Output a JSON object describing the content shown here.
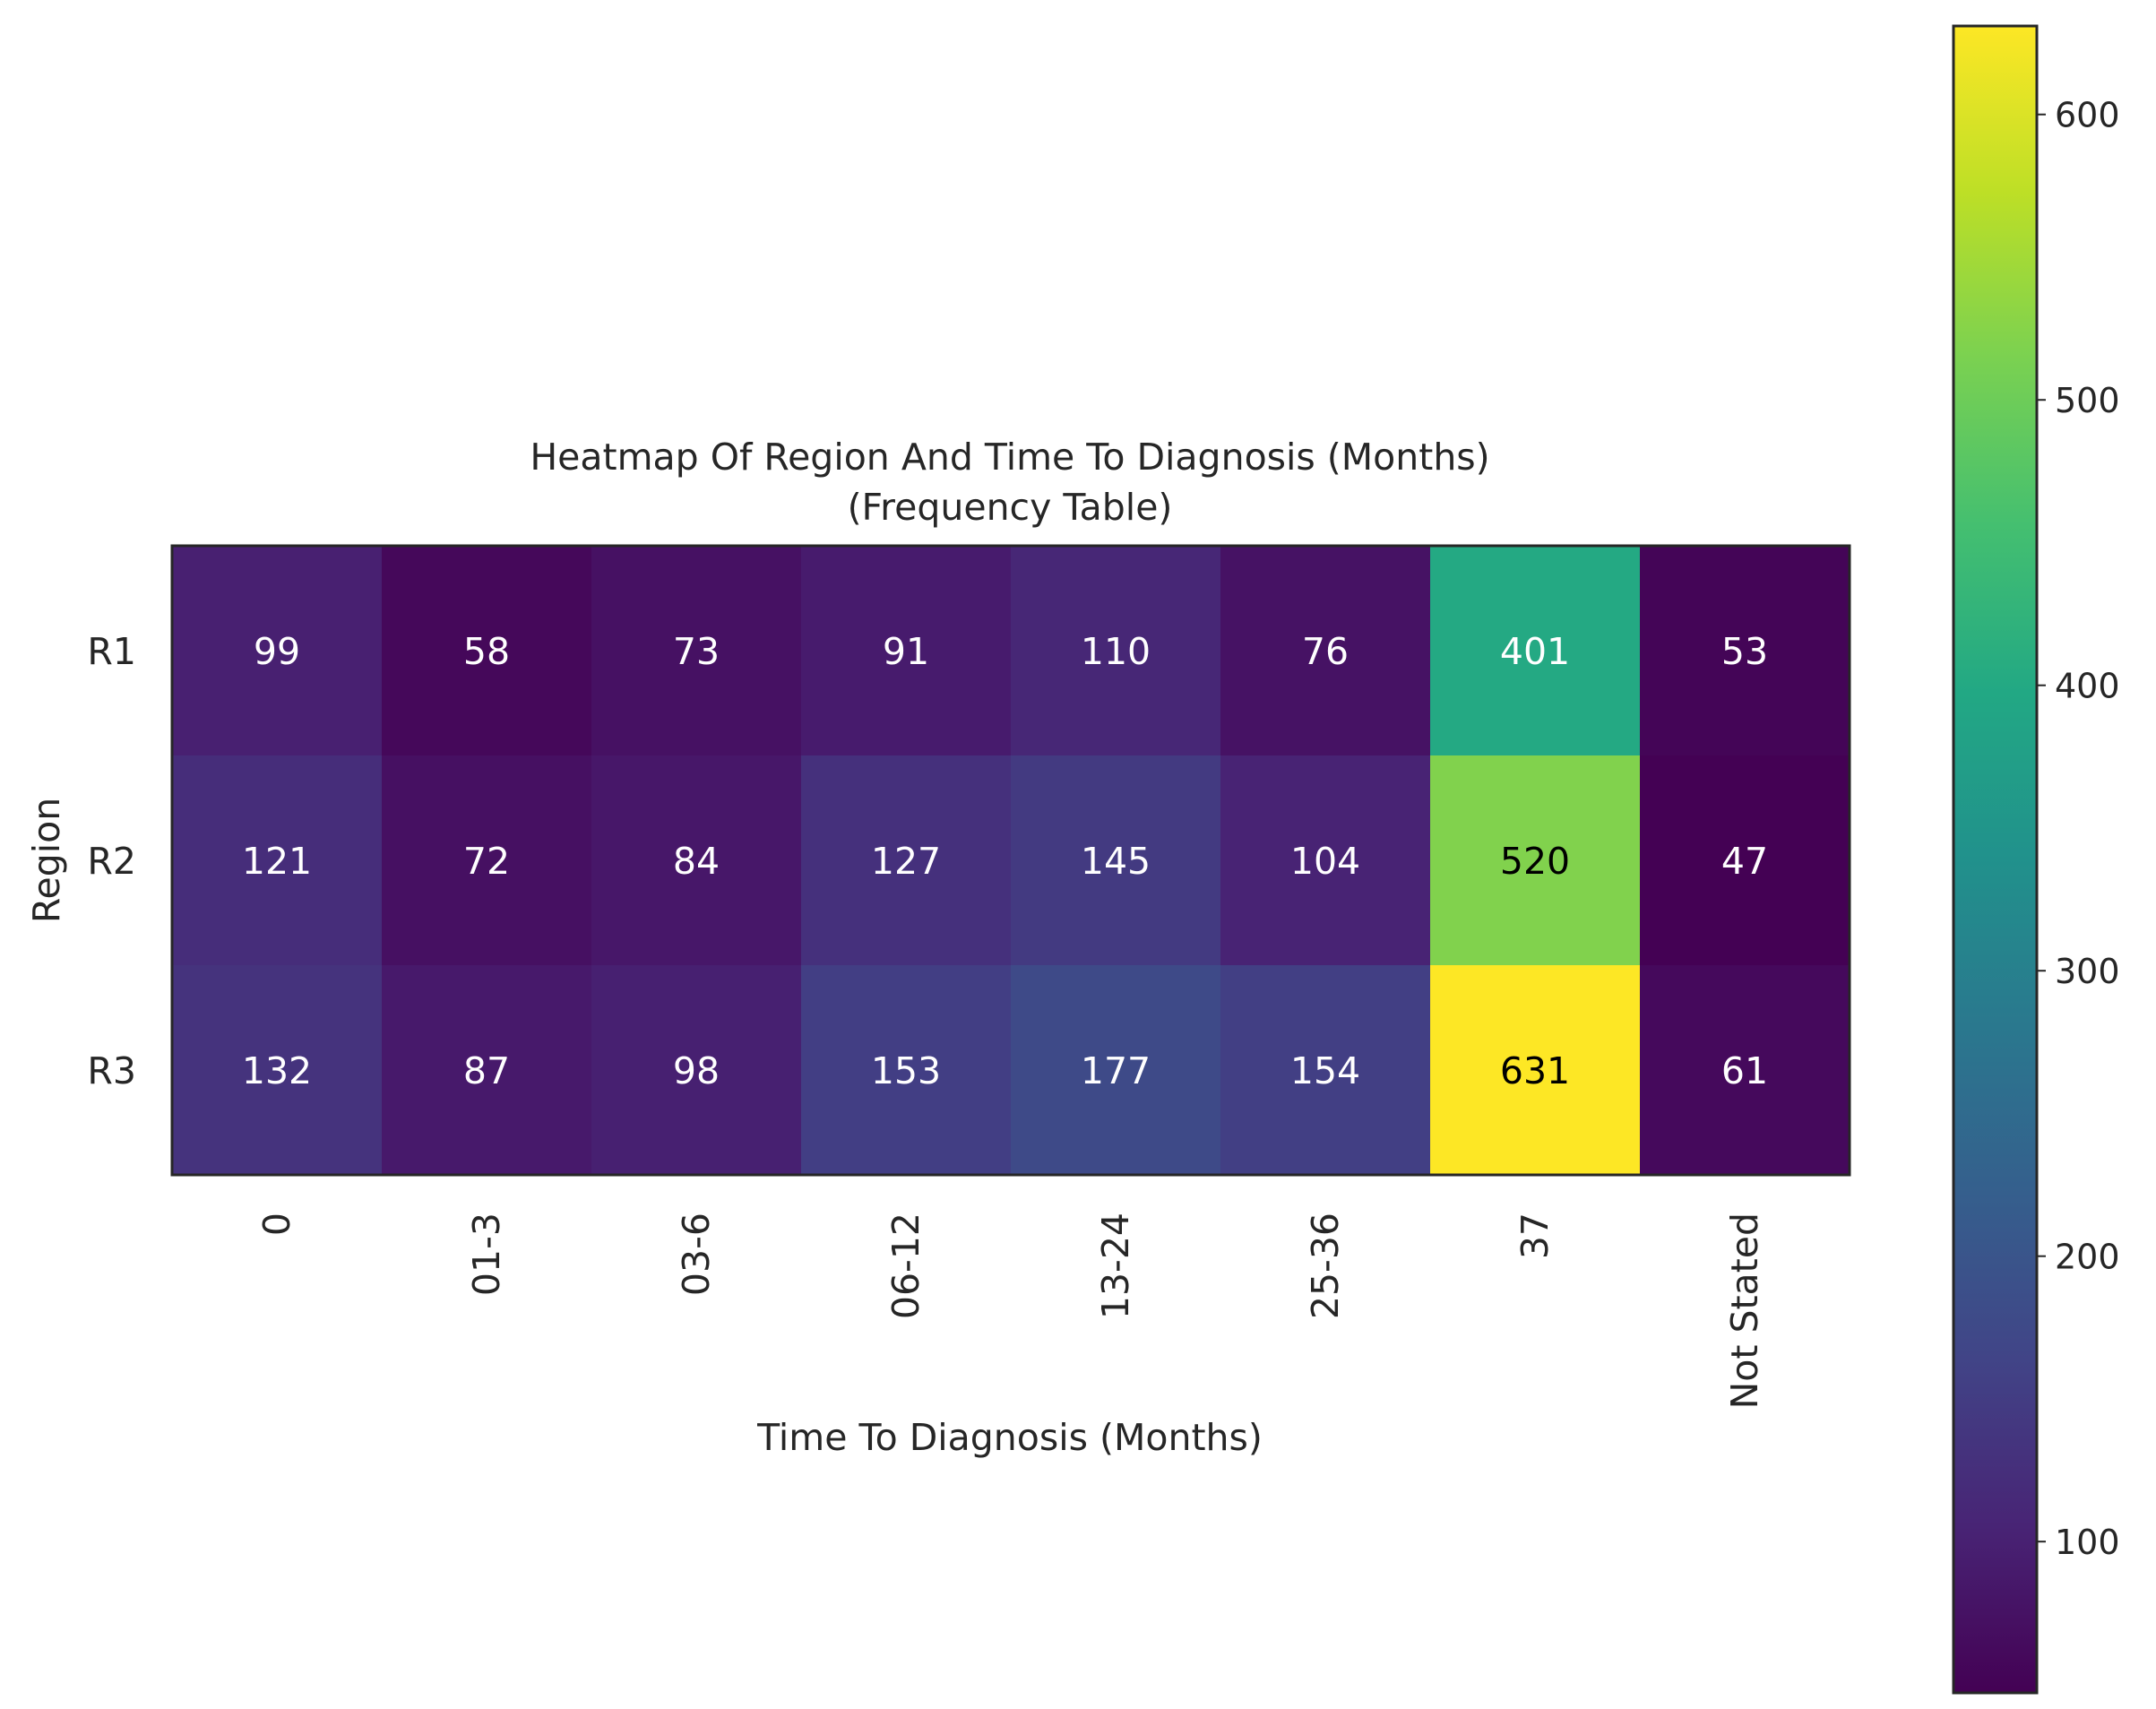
{
  "chart_data": {
    "type": "heatmap",
    "title": "Heatmap Of Region And Time To Diagnosis (Months)",
    "subtitle": "(Frequency Table)",
    "xlabel": "Time To Diagnosis (Months)",
    "ylabel": "Region",
    "x_categories": [
      "0",
      "01-3",
      "03-6",
      "06-12",
      "13-24",
      "25-36",
      "37",
      "Not Stated"
    ],
    "y_categories": [
      "R1",
      "R2",
      "R3"
    ],
    "values": [
      [
        99,
        58,
        73,
        91,
        110,
        76,
        401,
        53
      ],
      [
        121,
        72,
        84,
        127,
        145,
        104,
        520,
        47
      ],
      [
        132,
        87,
        98,
        153,
        177,
        154,
        631,
        61
      ]
    ],
    "colormap": "viridis",
    "color_range": [
      47,
      631
    ],
    "colorbar_ticks": [
      100,
      200,
      300,
      400,
      500,
      600
    ],
    "annotation_colors": {
      "dark_cell_text": "#ffffff",
      "light_cell_text": "#000000"
    },
    "grid": false
  }
}
